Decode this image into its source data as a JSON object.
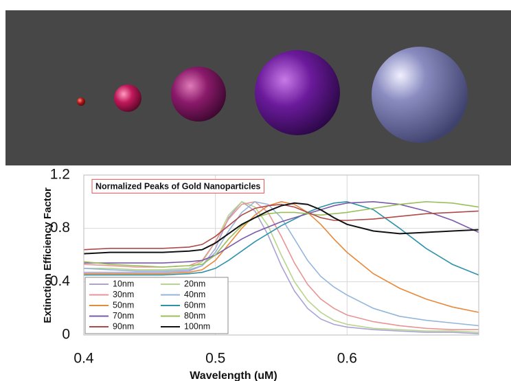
{
  "chart_data": {
    "type": "line",
    "title": "Normalized Peaks of Gold Nanoparticles",
    "xlabel": "Wavelength (uM)",
    "ylabel": "Extinction Efficiency Factor",
    "x": [
      0.4,
      0.42,
      0.44,
      0.46,
      0.48,
      0.49,
      0.5,
      0.51,
      0.52,
      0.53,
      0.54,
      0.55,
      0.56,
      0.57,
      0.58,
      0.59,
      0.6,
      0.62,
      0.64,
      0.66,
      0.68,
      0.7
    ],
    "xlim": [
      0.4,
      0.7
    ],
    "xticks": [
      0.4,
      0.5,
      0.6
    ],
    "ylim": [
      0,
      1.2
    ],
    "yticks": [
      0,
      0.4,
      0.8,
      1.2
    ],
    "grid": true,
    "legend": "lower left",
    "series": [
      {
        "name": "10nm",
        "color": "#a9a3d4",
        "values": [
          0.47,
          0.47,
          0.47,
          0.47,
          0.48,
          0.52,
          0.65,
          0.88,
          1.0,
          0.93,
          0.75,
          0.52,
          0.33,
          0.2,
          0.12,
          0.08,
          0.06,
          0.04,
          0.03,
          0.02,
          0.02,
          0.01
        ]
      },
      {
        "name": "20nm",
        "color": "#b8d48c",
        "values": [
          0.5,
          0.5,
          0.49,
          0.49,
          0.5,
          0.55,
          0.7,
          0.9,
          1.0,
          0.96,
          0.82,
          0.6,
          0.4,
          0.26,
          0.17,
          0.11,
          0.08,
          0.05,
          0.04,
          0.03,
          0.03,
          0.02
        ]
      },
      {
        "name": "30nm",
        "color": "#e89494",
        "values": [
          0.53,
          0.52,
          0.51,
          0.51,
          0.52,
          0.56,
          0.7,
          0.87,
          0.98,
          1.0,
          0.92,
          0.74,
          0.54,
          0.38,
          0.27,
          0.2,
          0.15,
          0.1,
          0.07,
          0.05,
          0.04,
          0.04
        ]
      },
      {
        "name": "40nm",
        "color": "#94b6dc",
        "values": [
          0.5,
          0.49,
          0.48,
          0.48,
          0.49,
          0.52,
          0.62,
          0.78,
          0.92,
          1.0,
          0.98,
          0.88,
          0.72,
          0.56,
          0.44,
          0.36,
          0.3,
          0.2,
          0.14,
          0.11,
          0.09,
          0.07
        ]
      },
      {
        "name": "50nm",
        "color": "#e8883a",
        "values": [
          0.46,
          0.46,
          0.46,
          0.46,
          0.47,
          0.49,
          0.56,
          0.68,
          0.8,
          0.9,
          0.97,
          1.0,
          0.98,
          0.92,
          0.83,
          0.72,
          0.62,
          0.46,
          0.35,
          0.27,
          0.21,
          0.17
        ]
      },
      {
        "name": "60nm",
        "color": "#2e93a8",
        "values": [
          0.45,
          0.45,
          0.45,
          0.45,
          0.46,
          0.47,
          0.5,
          0.56,
          0.63,
          0.7,
          0.76,
          0.82,
          0.87,
          0.92,
          0.96,
          0.99,
          1.0,
          0.94,
          0.8,
          0.65,
          0.53,
          0.45
        ]
      },
      {
        "name": "70nm",
        "color": "#7a5aa8",
        "values": [
          0.54,
          0.54,
          0.54,
          0.54,
          0.55,
          0.56,
          0.6,
          0.66,
          0.72,
          0.77,
          0.81,
          0.85,
          0.88,
          0.91,
          0.94,
          0.97,
          0.99,
          1.0,
          0.98,
          0.93,
          0.86,
          0.77
        ]
      },
      {
        "name": "80nm",
        "color": "#9abf5a",
        "values": [
          0.55,
          0.53,
          0.52,
          0.51,
          0.52,
          0.53,
          0.6,
          0.72,
          0.82,
          0.88,
          0.91,
          0.92,
          0.92,
          0.91,
          0.9,
          0.91,
          0.92,
          0.95,
          0.98,
          1.0,
          0.99,
          0.96
        ]
      },
      {
        "name": "90nm",
        "color": "#b04848",
        "values": [
          0.64,
          0.65,
          0.65,
          0.65,
          0.66,
          0.68,
          0.74,
          0.82,
          0.9,
          0.95,
          0.97,
          0.98,
          0.96,
          0.92,
          0.88,
          0.86,
          0.86,
          0.87,
          0.89,
          0.91,
          0.92,
          0.93
        ]
      },
      {
        "name": "100nm",
        "color": "#111111",
        "values": [
          0.61,
          0.62,
          0.62,
          0.62,
          0.63,
          0.64,
          0.69,
          0.76,
          0.83,
          0.88,
          0.93,
          0.97,
          0.99,
          0.98,
          0.94,
          0.88,
          0.83,
          0.78,
          0.76,
          0.77,
          0.78,
          0.79
        ]
      }
    ]
  }
}
